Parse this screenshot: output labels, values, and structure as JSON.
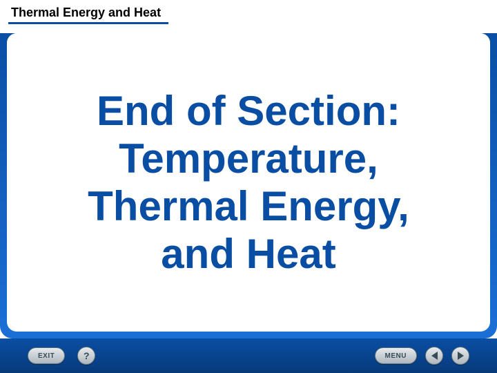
{
  "header": {
    "title": "Thermal Energy and Heat",
    "underline_color": "#0a4ea3",
    "title_color": "#000000",
    "title_fontsize": 18
  },
  "main": {
    "line1": "End of Section:",
    "line2": "Temperature,",
    "line3": "Thermal Energy,",
    "line4": "and Heat",
    "text_color": "#0a4ea3",
    "fontsize": 60,
    "fontweight": "bold"
  },
  "frame": {
    "gradient_top": "#0a4ea3",
    "gradient_bottom": "#1a6fd6",
    "inner_bg": "#ffffff",
    "border_radius": 14
  },
  "footer": {
    "gradient_top": "#0a4ea3",
    "gradient_bottom": "#073a7a",
    "exit_label": "EXIT",
    "help_label": "?",
    "menu_label": "MENU",
    "button_bg_top": "#e4e9ec",
    "button_bg_bottom": "#aeb8bf",
    "button_border": "#6a7880",
    "button_text_color": "#3a4a55"
  }
}
